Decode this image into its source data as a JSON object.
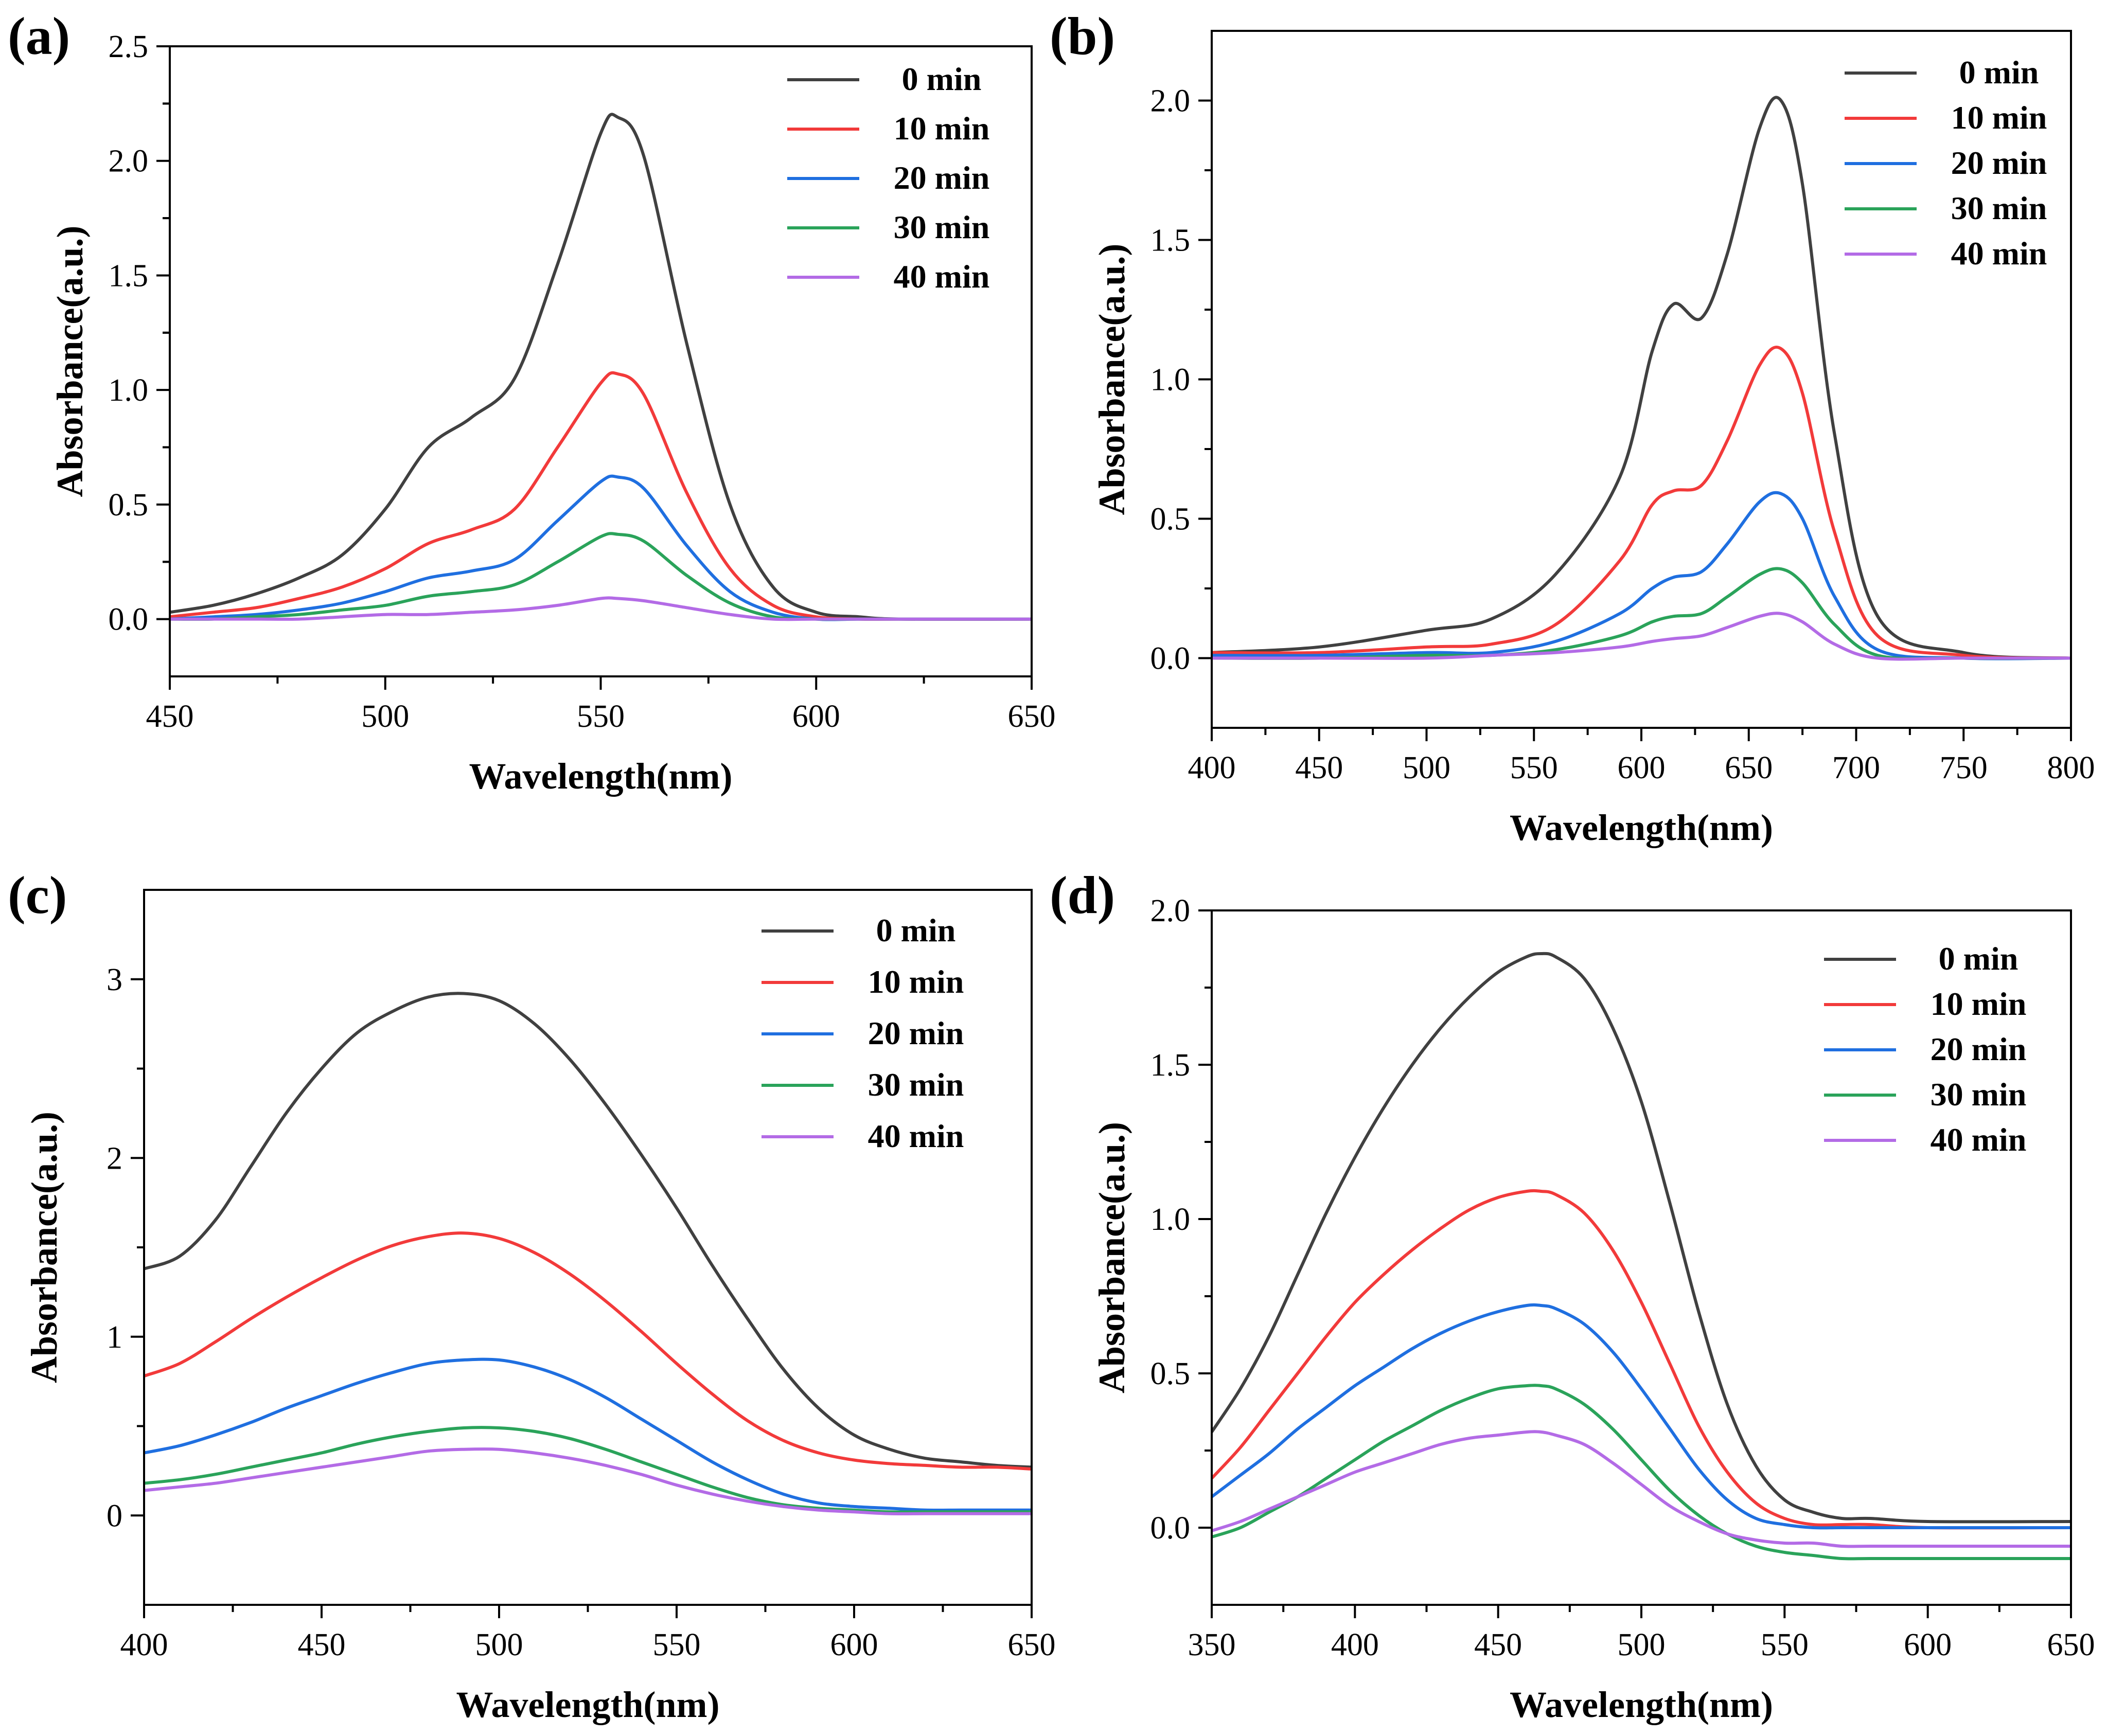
{
  "colors": {
    "0 min": "#404040",
    "10 min": "#f23a3a",
    "20 min": "#1f6fe0",
    "30 min": "#2aa35a",
    "40 min": "#b36be6"
  },
  "chart_data": [
    {
      "panel_label": "(a)",
      "type": "line",
      "xlabel": "Wavelength(nm)",
      "ylabel": "Absorbance(a.u.)",
      "xlim": [
        450,
        650
      ],
      "ylim": [
        -0.25,
        2.5
      ],
      "xticks": [
        "450",
        "500",
        "550",
        "600",
        "650"
      ],
      "yticks": [
        "0.0",
        "0.5",
        "1.0",
        "1.5",
        "2.0",
        "2.5"
      ],
      "legend": [
        "0 min",
        "10 min",
        "20 min",
        "30 min",
        "40 min"
      ],
      "legend_position": "top-right",
      "x": [
        450,
        460,
        470,
        480,
        490,
        500,
        510,
        520,
        530,
        540,
        550,
        554,
        560,
        570,
        580,
        590,
        600,
        610,
        620,
        650
      ],
      "series": [
        {
          "name": "0 min",
          "values": [
            0.03,
            0.06,
            0.11,
            0.18,
            0.28,
            0.48,
            0.75,
            0.88,
            1.05,
            1.55,
            2.12,
            2.19,
            2.02,
            1.2,
            0.5,
            0.14,
            0.03,
            0.01,
            0.0,
            0.0
          ]
        },
        {
          "name": "10 min",
          "values": [
            0.01,
            0.03,
            0.05,
            0.09,
            0.14,
            0.22,
            0.33,
            0.39,
            0.48,
            0.75,
            1.03,
            1.07,
            0.98,
            0.55,
            0.22,
            0.06,
            0.01,
            0.0,
            0.0,
            0.0
          ]
        },
        {
          "name": "20 min",
          "values": [
            0.0,
            0.01,
            0.02,
            0.04,
            0.07,
            0.12,
            0.18,
            0.21,
            0.26,
            0.43,
            0.6,
            0.62,
            0.57,
            0.32,
            0.12,
            0.03,
            0.0,
            0.0,
            0.0,
            0.0
          ]
        },
        {
          "name": "30 min",
          "values": [
            0.0,
            0.0,
            0.01,
            0.02,
            0.04,
            0.06,
            0.1,
            0.12,
            0.15,
            0.25,
            0.36,
            0.37,
            0.34,
            0.19,
            0.07,
            0.01,
            0.0,
            0.0,
            0.0,
            0.0
          ]
        },
        {
          "name": "40 min",
          "values": [
            0.0,
            0.0,
            0.0,
            0.0,
            0.01,
            0.02,
            0.02,
            0.03,
            0.04,
            0.06,
            0.09,
            0.09,
            0.08,
            0.05,
            0.02,
            0.0,
            0.0,
            0.0,
            0.0,
            0.0
          ]
        }
      ]
    },
    {
      "panel_label": "(b)",
      "type": "line",
      "xlabel": "Wavelength(nm)",
      "ylabel": "Absorbance(a.u.)",
      "xlim": [
        400,
        800
      ],
      "ylim": [
        -0.25,
        2.25
      ],
      "xticks": [
        "400",
        "450",
        "500",
        "550",
        "600",
        "650",
        "700",
        "750",
        "800"
      ],
      "yticks": [
        "0.0",
        "0.5",
        "1.0",
        "1.5",
        "2.0"
      ],
      "legend": [
        "0  min",
        "10 min",
        "20 min",
        "30 min",
        "40 min"
      ],
      "legend_position": "top-right",
      "x": [
        400,
        450,
        500,
        530,
        560,
        590,
        605,
        615,
        628,
        640,
        655,
        665,
        675,
        690,
        710,
        750,
        800
      ],
      "series": [
        {
          "name": "0 min",
          "values": [
            0.02,
            0.04,
            0.1,
            0.14,
            0.3,
            0.65,
            1.1,
            1.27,
            1.22,
            1.45,
            1.9,
            2.0,
            1.7,
            0.8,
            0.15,
            0.02,
            0.0
          ]
        },
        {
          "name": "10 min",
          "values": [
            0.02,
            0.02,
            0.04,
            0.05,
            0.12,
            0.35,
            0.55,
            0.6,
            0.62,
            0.78,
            1.05,
            1.11,
            0.95,
            0.45,
            0.08,
            0.01,
            0.0
          ]
        },
        {
          "name": "20 min",
          "values": [
            0.01,
            0.01,
            0.02,
            0.02,
            0.06,
            0.16,
            0.25,
            0.29,
            0.31,
            0.41,
            0.56,
            0.59,
            0.5,
            0.22,
            0.03,
            0.0,
            0.0
          ]
        },
        {
          "name": "30 min",
          "values": [
            0.0,
            0.0,
            0.01,
            0.01,
            0.03,
            0.08,
            0.13,
            0.15,
            0.16,
            0.22,
            0.3,
            0.32,
            0.27,
            0.12,
            0.01,
            0.0,
            0.0
          ]
        },
        {
          "name": "40 min",
          "values": [
            0.0,
            0.0,
            0.0,
            0.01,
            0.02,
            0.04,
            0.06,
            0.07,
            0.08,
            0.11,
            0.15,
            0.16,
            0.13,
            0.05,
            0.0,
            0.0,
            0.0
          ]
        }
      ]
    },
    {
      "panel_label": "(c)",
      "type": "line",
      "xlabel": "Wavelength(nm)",
      "ylabel": "Absorbance(a.u.)",
      "xlim": [
        400,
        650
      ],
      "ylim": [
        -0.5,
        3.5
      ],
      "xticks": [
        "400",
        "450",
        "500",
        "550",
        "600",
        "650"
      ],
      "yticks": [
        "0",
        "1",
        "2",
        "3"
      ],
      "legend": [
        "0 min",
        "10 min",
        "20 min",
        "30 min",
        "40 min"
      ],
      "legend_position": "top-right",
      "x": [
        400,
        410,
        420,
        430,
        440,
        450,
        460,
        470,
        480,
        490,
        500,
        510,
        520,
        530,
        540,
        550,
        560,
        570,
        580,
        590,
        600,
        610,
        620,
        630,
        640,
        650
      ],
      "series": [
        {
          "name": "0 min",
          "values": [
            1.38,
            1.45,
            1.65,
            1.95,
            2.25,
            2.5,
            2.7,
            2.82,
            2.9,
            2.92,
            2.88,
            2.75,
            2.55,
            2.3,
            2.02,
            1.72,
            1.4,
            1.1,
            0.82,
            0.6,
            0.45,
            0.37,
            0.32,
            0.3,
            0.28,
            0.27
          ]
        },
        {
          "name": "10 min",
          "values": [
            0.78,
            0.85,
            0.97,
            1.1,
            1.22,
            1.33,
            1.43,
            1.51,
            1.56,
            1.58,
            1.55,
            1.47,
            1.35,
            1.2,
            1.03,
            0.85,
            0.68,
            0.53,
            0.42,
            0.35,
            0.31,
            0.29,
            0.28,
            0.27,
            0.27,
            0.26
          ]
        },
        {
          "name": "20 min",
          "values": [
            0.35,
            0.39,
            0.45,
            0.52,
            0.6,
            0.67,
            0.74,
            0.8,
            0.85,
            0.87,
            0.87,
            0.83,
            0.76,
            0.66,
            0.54,
            0.42,
            0.3,
            0.2,
            0.12,
            0.07,
            0.05,
            0.04,
            0.03,
            0.03,
            0.03,
            0.03
          ]
        },
        {
          "name": "30 min",
          "values": [
            0.18,
            0.2,
            0.23,
            0.27,
            0.31,
            0.35,
            0.4,
            0.44,
            0.47,
            0.49,
            0.49,
            0.47,
            0.43,
            0.37,
            0.3,
            0.23,
            0.16,
            0.1,
            0.06,
            0.04,
            0.03,
            0.02,
            0.02,
            0.02,
            0.02,
            0.02
          ]
        },
        {
          "name": "40 min",
          "values": [
            0.14,
            0.16,
            0.18,
            0.21,
            0.24,
            0.27,
            0.3,
            0.33,
            0.36,
            0.37,
            0.37,
            0.35,
            0.32,
            0.28,
            0.23,
            0.17,
            0.12,
            0.08,
            0.05,
            0.03,
            0.02,
            0.01,
            0.01,
            0.01,
            0.01,
            0.01
          ]
        }
      ]
    },
    {
      "panel_label": "(d)",
      "type": "line",
      "xlabel": "Wavelength(nm)",
      "ylabel": "Absorbance(a.u.)",
      "xlim": [
        350,
        650
      ],
      "ylim": [
        -0.25,
        2.0
      ],
      "xticks": [
        "350",
        "400",
        "450",
        "500",
        "550",
        "600",
        "650"
      ],
      "yticks": [
        "0.0",
        "0.5",
        "1.0",
        "1.5",
        "2.0"
      ],
      "legend": [
        "0  min",
        "10 min",
        "20 min",
        "30 min",
        "40 min"
      ],
      "legend_position": "top-right",
      "x": [
        350,
        360,
        370,
        380,
        390,
        400,
        410,
        420,
        430,
        440,
        450,
        460,
        465,
        470,
        480,
        490,
        500,
        510,
        520,
        530,
        540,
        550,
        560,
        570,
        580,
        600,
        650
      ],
      "series": [
        {
          "name": "0 min",
          "values": [
            0.31,
            0.45,
            0.62,
            0.82,
            1.02,
            1.2,
            1.36,
            1.5,
            1.62,
            1.72,
            1.8,
            1.85,
            1.86,
            1.85,
            1.78,
            1.62,
            1.38,
            1.05,
            0.7,
            0.4,
            0.2,
            0.09,
            0.05,
            0.03,
            0.03,
            0.02,
            0.02
          ]
        },
        {
          "name": "10 min",
          "values": [
            0.16,
            0.26,
            0.38,
            0.5,
            0.62,
            0.73,
            0.82,
            0.9,
            0.97,
            1.03,
            1.07,
            1.09,
            1.09,
            1.08,
            1.02,
            0.9,
            0.73,
            0.53,
            0.33,
            0.18,
            0.08,
            0.03,
            0.01,
            0.01,
            0.01,
            0.0,
            0.0
          ]
        },
        {
          "name": "20 min",
          "values": [
            0.1,
            0.17,
            0.24,
            0.32,
            0.39,
            0.46,
            0.52,
            0.58,
            0.63,
            0.67,
            0.7,
            0.72,
            0.72,
            0.71,
            0.66,
            0.57,
            0.45,
            0.32,
            0.19,
            0.09,
            0.03,
            0.01,
            0.0,
            0.0,
            0.0,
            0.0,
            0.0
          ]
        },
        {
          "name": "30 min",
          "values": [
            -0.03,
            0.0,
            0.05,
            0.1,
            0.16,
            0.22,
            0.28,
            0.33,
            0.38,
            0.42,
            0.45,
            0.46,
            0.46,
            0.45,
            0.4,
            0.32,
            0.22,
            0.12,
            0.04,
            -0.02,
            -0.06,
            -0.08,
            -0.09,
            -0.1,
            -0.1,
            -0.1,
            -0.1
          ]
        },
        {
          "name": "40 min",
          "values": [
            -0.01,
            0.02,
            0.06,
            0.1,
            0.14,
            0.18,
            0.21,
            0.24,
            0.27,
            0.29,
            0.3,
            0.31,
            0.31,
            0.3,
            0.27,
            0.21,
            0.14,
            0.07,
            0.02,
            -0.02,
            -0.04,
            -0.05,
            -0.05,
            -0.06,
            -0.06,
            -0.06,
            -0.06
          ]
        }
      ]
    }
  ]
}
